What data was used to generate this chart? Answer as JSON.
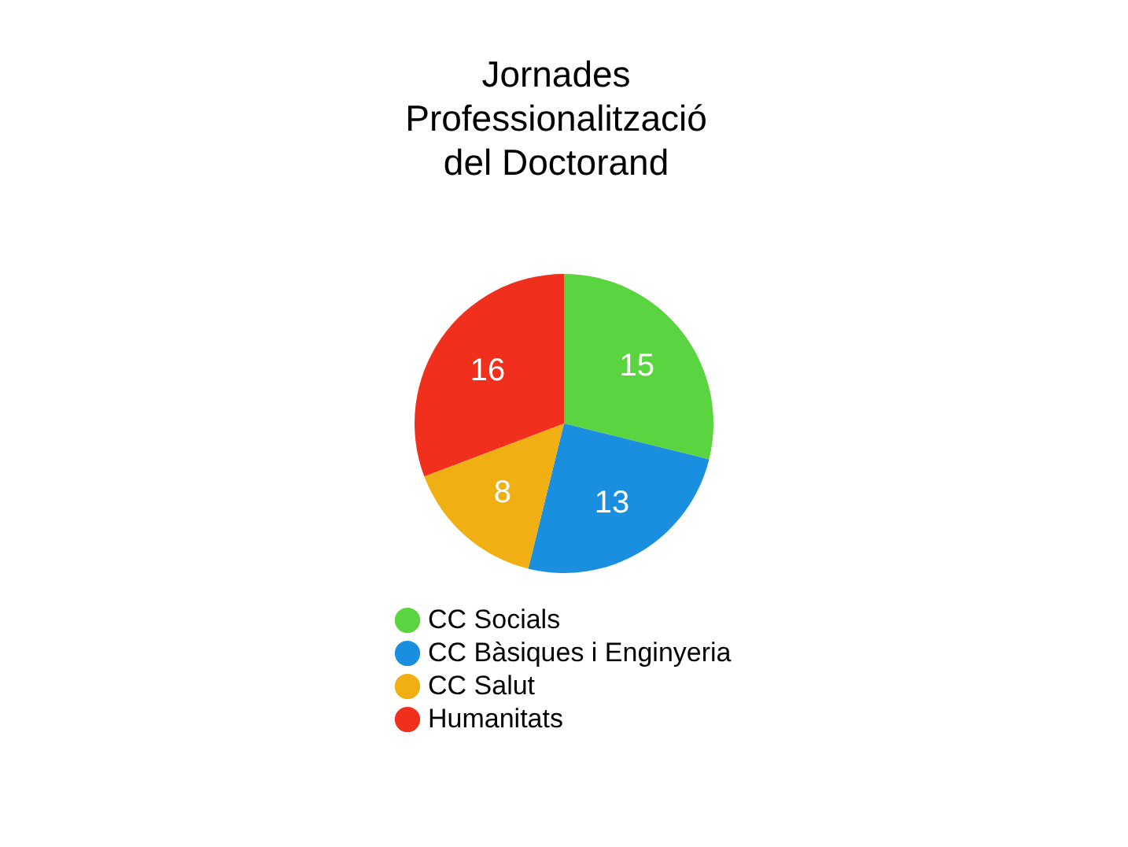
{
  "chart_data": {
    "type": "pie",
    "title": "Jornades\nProfessionalització\ndel Doctorand",
    "categories": [
      "CC Socials",
      "CC Bàsiques i Enginyeria",
      "CC Salut",
      "Humanitats"
    ],
    "values": [
      15,
      13,
      8,
      16
    ],
    "colors": [
      "#5ad43f",
      "#1a8fe0",
      "#f0b014",
      "#f0301c"
    ],
    "data_labels": true,
    "legend": "bottom"
  }
}
